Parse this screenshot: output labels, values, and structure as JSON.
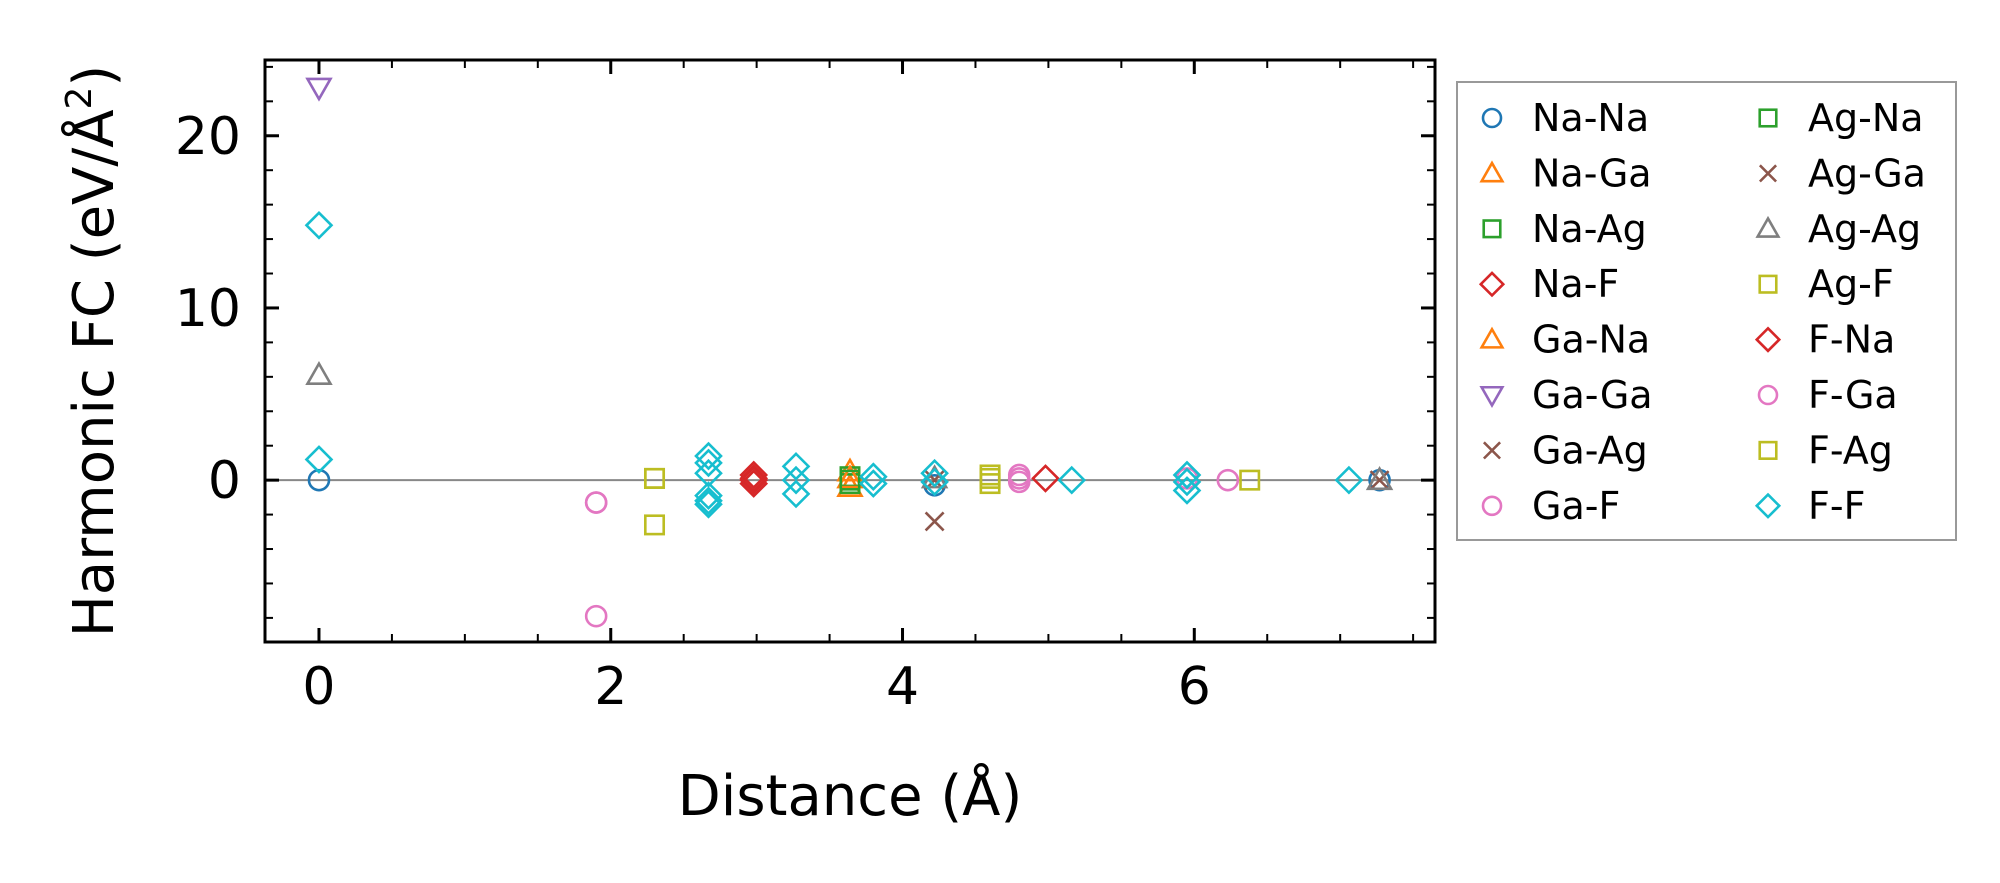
{
  "chart_data": {
    "type": "scatter",
    "xlabel": "Distance (Å)",
    "ylabel_main": "Harmonic FC (eV/Å",
    "ylabel_sup": "2",
    "ylabel_close": ")",
    "xlim": [
      -0.37,
      7.65
    ],
    "ylim": [
      -9.4,
      24.4
    ],
    "xticks": [
      0,
      2,
      4,
      6
    ],
    "yticks": [
      0,
      10,
      20
    ],
    "xminor": [
      0.5,
      1.0,
      1.5,
      2.5,
      3.0,
      3.5,
      4.5,
      5.0,
      5.5,
      6.5,
      7.0,
      7.5
    ],
    "yminor": [
      -8,
      -6,
      -4,
      -2,
      2,
      4,
      6,
      8,
      12,
      14,
      16,
      18,
      22,
      24
    ],
    "zero_line": true,
    "legend_position": "outside-right",
    "series": [
      {
        "name": "Na-Na",
        "marker": "circle",
        "color": "#1f77b4",
        "points": [
          [
            0,
            0
          ],
          [
            4.22,
            -0.3
          ],
          [
            7.27,
            0
          ]
        ]
      },
      {
        "name": "Na-Ga",
        "marker": "triangle-up",
        "color": "#ff7f0e",
        "points": [
          [
            3.64,
            0.5
          ],
          [
            3.64,
            -0.4
          ]
        ]
      },
      {
        "name": "Na-Ag",
        "marker": "square",
        "color": "#2ca02c",
        "points": [
          [
            3.64,
            0.2
          ],
          [
            3.64,
            -0.2
          ]
        ]
      },
      {
        "name": "Na-F",
        "marker": "diamond",
        "color": "#d62728",
        "points": [
          [
            2.98,
            0.3
          ],
          [
            2.98,
            0.0
          ],
          [
            2.98,
            -0.2
          ],
          [
            4.98,
            0.1
          ]
        ]
      },
      {
        "name": "Ga-Na",
        "marker": "triangle-up",
        "color": "#ff7f0e",
        "points": [
          [
            3.64,
            0.1
          ]
        ]
      },
      {
        "name": "Ga-Ga",
        "marker": "triangle-down",
        "color": "#9467bd",
        "points": [
          [
            0,
            22.8
          ]
        ]
      },
      {
        "name": "Ga-Ag",
        "marker": "x",
        "color": "#8c564b",
        "points": [
          [
            4.22,
            -2.4
          ],
          [
            7.27,
            0
          ]
        ]
      },
      {
        "name": "Ga-F",
        "marker": "circle",
        "color": "#e377c2",
        "points": [
          [
            1.9,
            -1.3
          ],
          [
            1.9,
            -7.9
          ],
          [
            4.8,
            0.3
          ],
          [
            4.8,
            -0.1
          ],
          [
            5.95,
            0.1
          ],
          [
            6.23,
            0.0
          ]
        ]
      },
      {
        "name": "Ag-Na",
        "marker": "square",
        "color": "#2ca02c",
        "points": [
          [
            3.64,
            0.0
          ]
        ]
      },
      {
        "name": "Ag-Ga",
        "marker": "x",
        "color": "#8c564b",
        "points": [
          [
            4.22,
            0.0
          ]
        ]
      },
      {
        "name": "Ag-Ag",
        "marker": "triangle-up",
        "color": "#7f7f7f",
        "points": [
          [
            0,
            6.1
          ],
          [
            4.22,
            0.1
          ],
          [
            7.27,
            0.0
          ]
        ]
      },
      {
        "name": "Ag-F",
        "marker": "square",
        "color": "#bcbd22",
        "points": [
          [
            2.3,
            0.1
          ],
          [
            2.3,
            -2.6
          ],
          [
            4.6,
            0.3
          ],
          [
            4.6,
            -0.2
          ],
          [
            6.38,
            0.0
          ]
        ]
      },
      {
        "name": "F-Na",
        "marker": "diamond",
        "color": "#d62728",
        "points": [
          [
            2.98,
            0.1
          ]
        ]
      },
      {
        "name": "F-Ga",
        "marker": "circle",
        "color": "#e377c2",
        "points": [
          [
            1.9,
            -1.3
          ],
          [
            4.8,
            0.1
          ]
        ]
      },
      {
        "name": "F-Ag",
        "marker": "square",
        "color": "#bcbd22",
        "points": [
          [
            2.3,
            0.1
          ],
          [
            4.6,
            0.1
          ]
        ]
      },
      {
        "name": "F-F",
        "marker": "diamond",
        "color": "#17becf",
        "points": [
          [
            0,
            14.8
          ],
          [
            0,
            1.2
          ],
          [
            2.67,
            1.4
          ],
          [
            2.67,
            1.0
          ],
          [
            2.67,
            0.4
          ],
          [
            2.67,
            -0.9
          ],
          [
            2.67,
            -1.2
          ],
          [
            2.67,
            -1.4
          ],
          [
            3.27,
            0.8
          ],
          [
            3.27,
            0.0
          ],
          [
            3.27,
            -0.8
          ],
          [
            3.8,
            0.2
          ],
          [
            3.8,
            -0.2
          ],
          [
            4.22,
            0.4
          ],
          [
            4.22,
            -0.1
          ],
          [
            5.16,
            0.0
          ],
          [
            5.95,
            0.3
          ],
          [
            5.95,
            -0.1
          ],
          [
            5.95,
            -0.6
          ],
          [
            7.06,
            0.0
          ]
        ]
      }
    ]
  }
}
